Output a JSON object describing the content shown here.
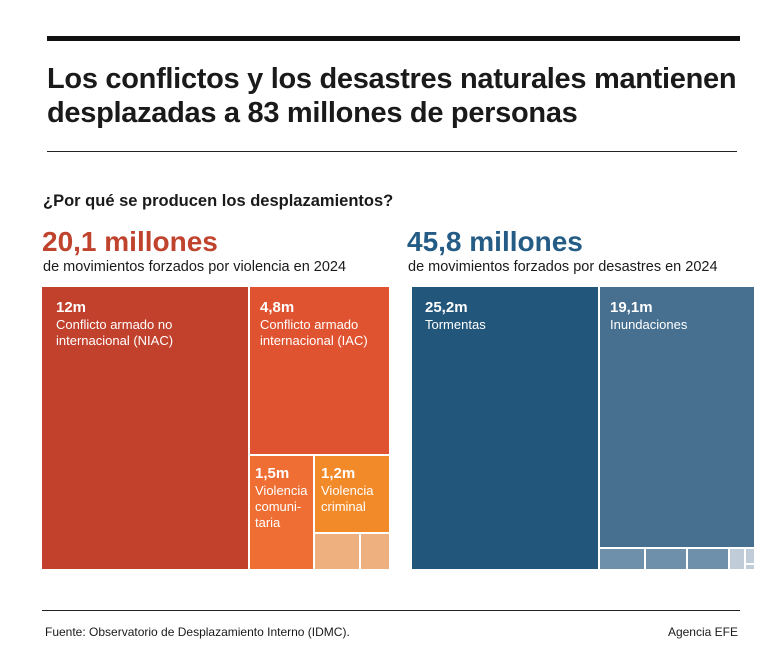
{
  "title": "Los conflictos y los desastres naturales mantienen desplazadas a 83 millones de personas",
  "subtitle": "¿Por qué se producen los desplazamientos?",
  "chart_data": [
    {
      "type": "treemap",
      "headline": "20,1 millones",
      "description": "de movimientos forzados por violencia en 2024",
      "color": "#c0432e",
      "items": [
        {
          "value_label": "12m",
          "value": 12,
          "label": "Conflicto armado no internacional (NIAC)",
          "color": "#c1412d"
        },
        {
          "value_label": "4,8m",
          "value": 4.8,
          "label": "Conflicto armado internacional (IAC)",
          "color": "#e05330"
        },
        {
          "value_label": "1,5m",
          "value": 1.5,
          "label": "Violencia comuni-taria",
          "label_lines": [
            "Violencia",
            "comuni-",
            "taria"
          ],
          "color": "#ef6e33"
        },
        {
          "value_label": "1,2m",
          "value": 1.2,
          "label": "Violencia criminal",
          "color": "#f28a2a"
        }
      ]
    },
    {
      "type": "treemap",
      "headline": "45,8 millones",
      "description": "de movimientos forzados por desastres en 2024",
      "color": "#245c85",
      "items": [
        {
          "value_label": "25,2m",
          "value": 25.2,
          "label": "Tormentas",
          "color": "#23567b"
        },
        {
          "value_label": "19,1m",
          "value": 19.1,
          "label": "Inundaciones",
          "color": "#466f90"
        }
      ]
    }
  ],
  "footer": {
    "source": "Fuente: Observatorio de Desplazamiento Interno (IDMC).",
    "credit": "Agencia EFE"
  }
}
